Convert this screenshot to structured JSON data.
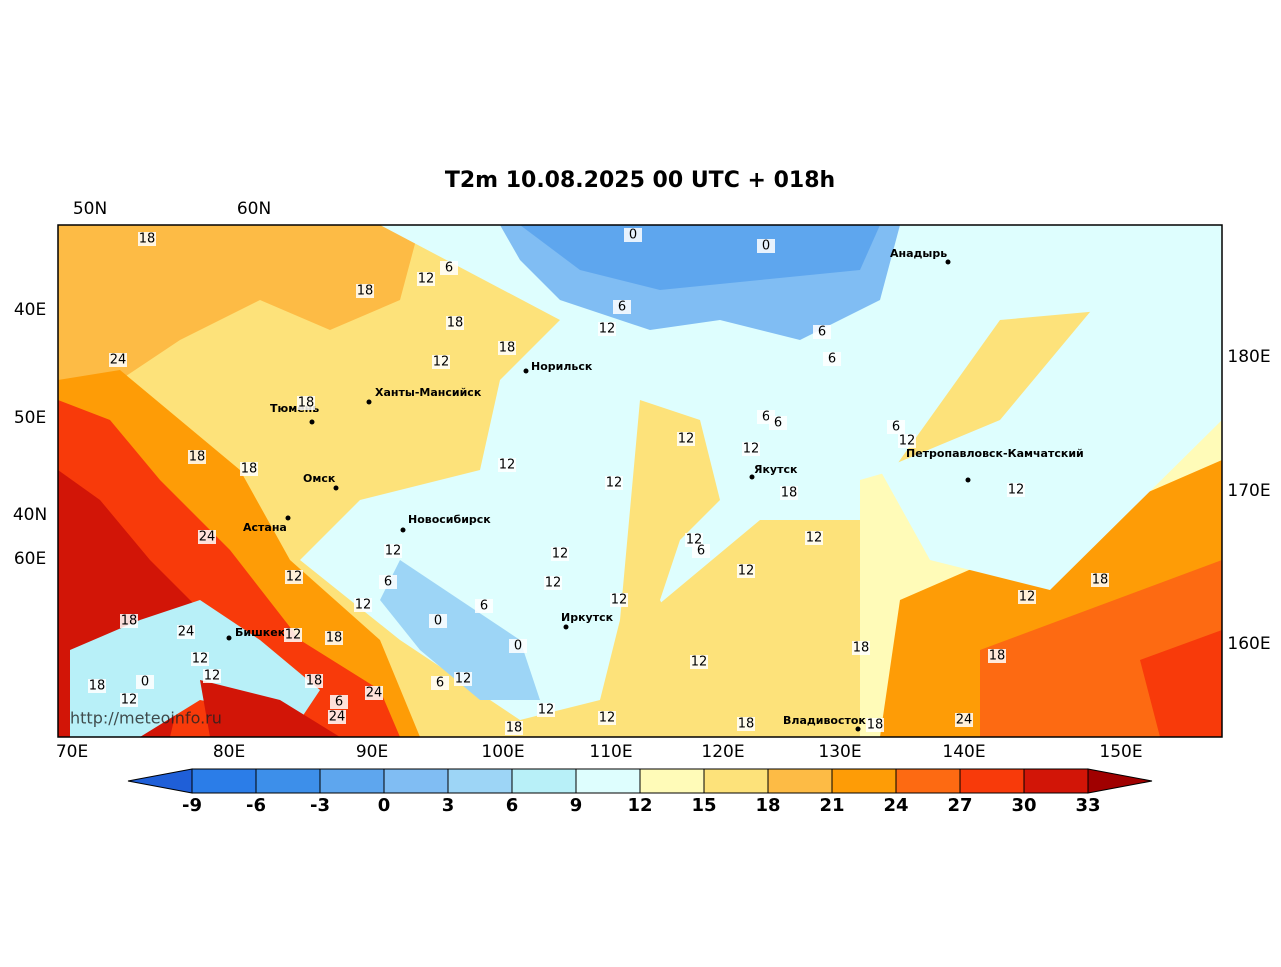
{
  "title": "T2m 10.08.2025 00 UTC + 018h",
  "top_labels": [
    "50N",
    "60N"
  ],
  "left_labels": [
    "40E",
    "50E",
    "40N",
    "60E"
  ],
  "right_labels": [
    "180E",
    "170E",
    "160E"
  ],
  "bottom_labels": [
    "70E",
    "80E",
    "90E",
    "100E",
    "110E",
    "120E",
    "130E",
    "140E",
    "150E"
  ],
  "cities": [
    "Анадырь",
    "Норильск",
    "Ханты-Мансийск",
    "Тюмень",
    "Якутск",
    "Петропавловск-Камчатский",
    "Омск",
    "Астана",
    "Новосибирск",
    "Иркутск",
    "Бишкек",
    "Владивосток"
  ],
  "contour_labels": [
    18,
    0,
    0,
    6,
    12,
    18,
    18,
    6,
    12,
    18,
    12,
    24,
    18,
    6,
    6,
    6,
    6,
    12,
    12,
    6,
    12,
    18,
    18,
    12,
    12,
    18,
    12,
    24,
    12,
    12,
    12,
    6,
    12,
    12,
    6,
    12,
    12,
    18,
    12,
    12,
    6,
    12,
    18,
    24,
    0,
    12,
    18,
    0,
    18,
    12,
    12,
    18,
    12,
    12,
    18,
    0,
    18,
    6,
    24,
    12,
    6,
    12,
    12,
    24,
    24,
    18,
    18,
    18
  ],
  "watermark": "http://meteoinfo.ru",
  "colorbar": {
    "ticks": [
      -9,
      -6,
      -3,
      0,
      3,
      6,
      9,
      12,
      15,
      18,
      21,
      24,
      27,
      30,
      33
    ],
    "colors": [
      "#1f5fd8",
      "#2b7de8",
      "#3d8fea",
      "#5ea6ee",
      "#80bdf3",
      "#9dd5f6",
      "#b8f0f8",
      "#defefe",
      "#fffbb8",
      "#fde27a",
      "#fdbb45",
      "#fe9c06",
      "#fd6a12",
      "#f83a0a",
      "#d21507",
      "#a00000"
    ]
  }
}
